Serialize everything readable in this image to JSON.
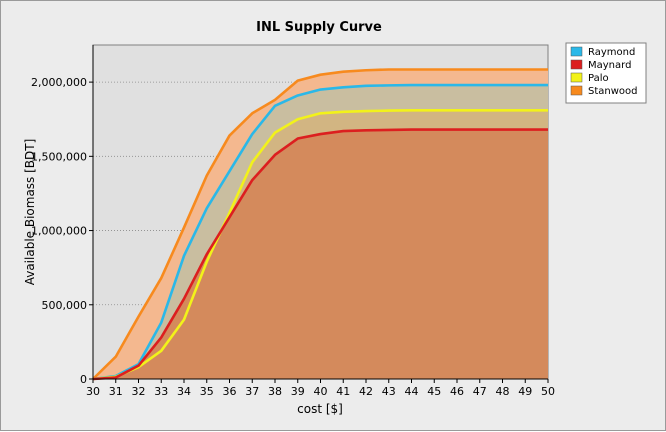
{
  "chart_data": {
    "type": "area",
    "title": "INL Supply Curve",
    "xlabel": "cost [$]",
    "ylabel": "Available Biomass [BDT]",
    "xlim": [
      30,
      50
    ],
    "ylim": [
      0,
      2250000
    ],
    "x": [
      30,
      31,
      32,
      33,
      34,
      35,
      36,
      37,
      38,
      39,
      40,
      41,
      42,
      43,
      44,
      45,
      46,
      47,
      48,
      49,
      50
    ],
    "x_ticks": [
      "30",
      "31",
      "32",
      "33",
      "34",
      "35",
      "36",
      "37",
      "38",
      "39",
      "40",
      "41",
      "42",
      "43",
      "44",
      "45",
      "46",
      "47",
      "48",
      "49",
      "50"
    ],
    "y_ticks": [
      {
        "value": 0,
        "label": "0"
      },
      {
        "value": 500000,
        "label": "500,000"
      },
      {
        "value": 1000000,
        "label": "1,000,000"
      },
      {
        "value": 1500000,
        "label": "1,500,000"
      },
      {
        "value": 2000000,
        "label": "2,000,000"
      }
    ],
    "grid": "horizontal",
    "legend_position": "top-right",
    "plot_background": "#e0e0e0",
    "series": [
      {
        "name": "Stanwood",
        "color": "#f78a1e",
        "fill": "#f4b88f",
        "values": [
          0,
          150000,
          420000,
          680000,
          1020000,
          1370000,
          1640000,
          1790000,
          1880000,
          2010000,
          2050000,
          2070000,
          2080000,
          2085000,
          2085000,
          2085000,
          2085000,
          2085000,
          2085000,
          2085000,
          2085000
        ]
      },
      {
        "name": "Raymond",
        "color": "#2ab8e8",
        "fill": "#c9bea0",
        "values": [
          0,
          20000,
          100000,
          380000,
          830000,
          1150000,
          1400000,
          1650000,
          1840000,
          1910000,
          1950000,
          1965000,
          1975000,
          1978000,
          1980000,
          1980000,
          1980000,
          1980000,
          1980000,
          1980000,
          1980000
        ]
      },
      {
        "name": "Palo",
        "color": "#f2f21a",
        "fill": "#d2b582",
        "values": [
          0,
          15000,
          80000,
          190000,
          400000,
          790000,
          1120000,
          1460000,
          1660000,
          1750000,
          1790000,
          1800000,
          1805000,
          1808000,
          1810000,
          1810000,
          1810000,
          1810000,
          1810000,
          1810000,
          1810000
        ]
      },
      {
        "name": "Maynard",
        "color": "#dc1f1f",
        "fill": "#d48a5c",
        "values": [
          0,
          10000,
          90000,
          280000,
          540000,
          840000,
          1090000,
          1340000,
          1510000,
          1620000,
          1650000,
          1670000,
          1675000,
          1678000,
          1680000,
          1680000,
          1680000,
          1680000,
          1680000,
          1680000,
          1680000
        ]
      }
    ],
    "legend_order": [
      "Raymond",
      "Maynard",
      "Palo",
      "Stanwood"
    ]
  }
}
